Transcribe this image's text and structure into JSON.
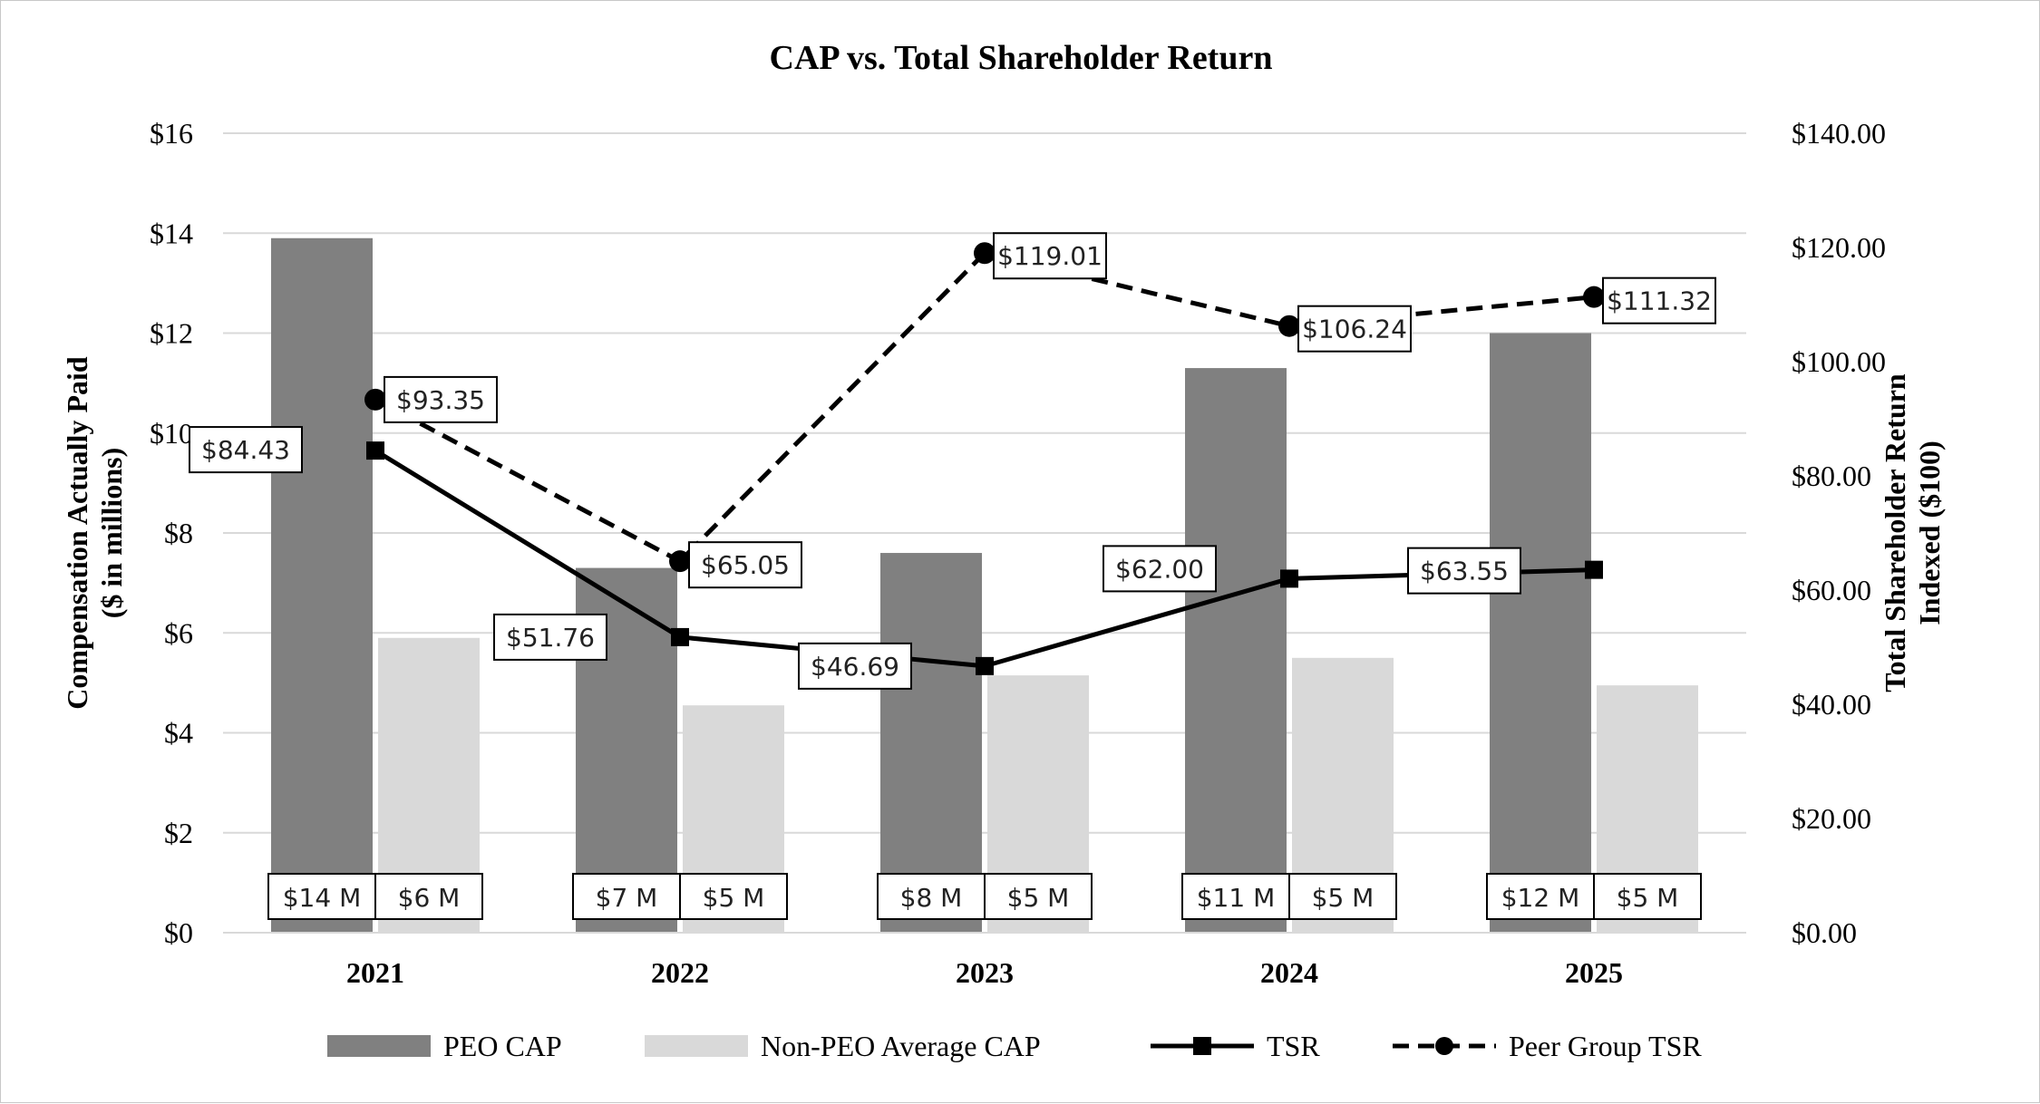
{
  "chart_data": {
    "type": "bar",
    "title": "CAP vs. Total Shareholder Return",
    "categories": [
      "2021",
      "2022",
      "2023",
      "2024",
      "2025"
    ],
    "y_left": {
      "label_lines": [
        "Compensation Actually Paid",
        "($ in millions)"
      ],
      "ylim": [
        0,
        16
      ],
      "ticks": [
        0,
        2,
        4,
        6,
        8,
        10,
        12,
        14,
        16
      ],
      "tick_labels": [
        "$0",
        "$2",
        "$4",
        "$6",
        "$8",
        "$10",
        "$12",
        "$14",
        "$16"
      ]
    },
    "y_right": {
      "label_lines": [
        "Total Shareholder Return",
        "Indexed ($100)"
      ],
      "ylim": [
        0,
        140
      ],
      "ticks": [
        0,
        20,
        40,
        60,
        80,
        100,
        120,
        140
      ],
      "tick_labels": [
        "$0.00",
        "$20.00",
        "$40.00",
        "$60.00",
        "$80.00",
        "$100.00",
        "$120.00",
        "$140.00"
      ]
    },
    "grid": true,
    "legend_position": "bottom",
    "series": [
      {
        "name": "PEO CAP",
        "kind": "bar",
        "axis": "left",
        "color": "#808080",
        "values": [
          13.9,
          7.3,
          7.6,
          11.3,
          12.0
        ],
        "data_labels": [
          "$14 M",
          "$7 M",
          "$8 M",
          "$11 M",
          "$12 M"
        ]
      },
      {
        "name": "Non-PEO Average CAP",
        "kind": "bar",
        "axis": "left",
        "color": "#d9d9d9",
        "values": [
          5.9,
          4.55,
          5.15,
          5.5,
          4.95
        ],
        "data_labels": [
          "$6 M",
          "$5 M",
          "$5 M",
          "$5 M",
          "$5 M"
        ]
      },
      {
        "name": "TSR",
        "kind": "line",
        "axis": "right",
        "color": "#000000",
        "line_style": "solid",
        "marker": "square",
        "values": [
          84.43,
          51.76,
          46.69,
          62.0,
          63.55
        ],
        "data_labels": [
          "$84.43",
          "$51.76",
          "$46.69",
          "$62.00",
          "$63.55"
        ]
      },
      {
        "name": "Peer Group TSR",
        "kind": "line",
        "axis": "right",
        "color": "#000000",
        "line_style": "dashed",
        "marker": "circle",
        "values": [
          93.35,
          65.05,
          119.01,
          106.24,
          111.32
        ],
        "data_labels": [
          "$93.35",
          "$65.05",
          "$119.01",
          "$106.24",
          "$111.32"
        ]
      }
    ]
  }
}
